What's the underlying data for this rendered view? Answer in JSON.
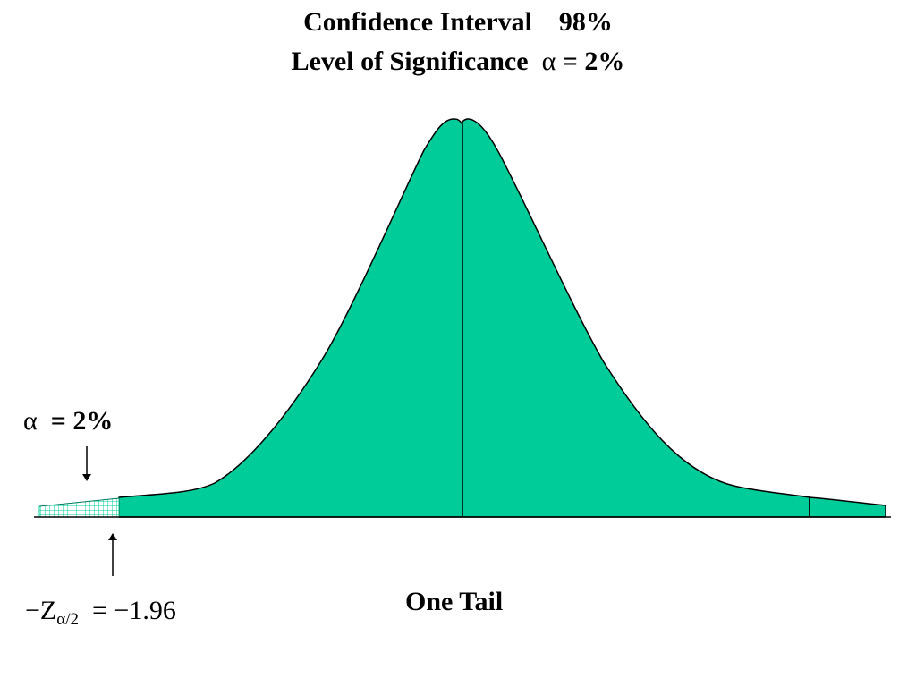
{
  "title": {
    "line1": "Confidence Interval    98%",
    "line2_prefix": "Level of Significance  ",
    "line2_symbol": "α",
    "line2_value": " = 2%"
  },
  "alpha_label": {
    "symbol": "α",
    "value": "  = 2%"
  },
  "z_label": {
    "prefix": "−Z",
    "subscript": "α/2",
    "value": "  = −1.96"
  },
  "tail_label": "One Tail",
  "colors": {
    "curve_fill": "#00CC99",
    "outline": "#000000",
    "background": "#FFFFFF"
  }
}
